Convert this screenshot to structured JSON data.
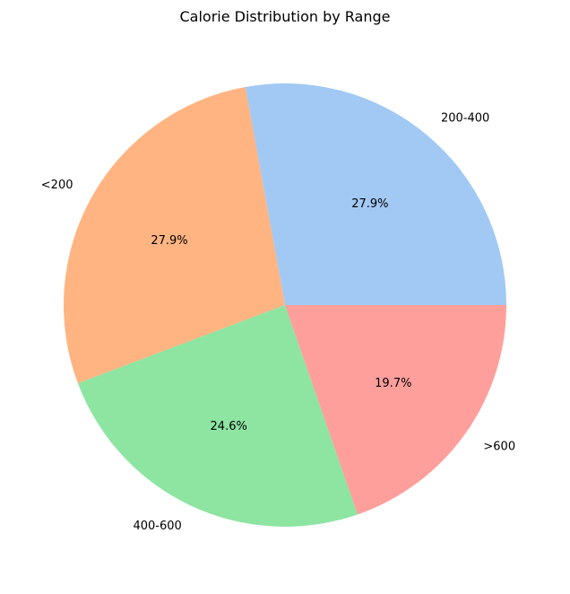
{
  "chart_data": {
    "type": "pie",
    "title": "Calorie Distribution by Range",
    "categories": [
      "200-400",
      "<200",
      "400-600",
      ">600"
    ],
    "values": [
      27.9,
      27.9,
      24.6,
      19.7
    ],
    "percent_labels": [
      "27.9%",
      "27.9%",
      "24.6%",
      "19.7%"
    ],
    "colors": [
      "#a1c9f4",
      "#ffb482",
      "#8de5a1",
      "#ff9f9b"
    ],
    "start_angle_deg": 0,
    "direction": "counterclockwise",
    "legend": "none"
  }
}
